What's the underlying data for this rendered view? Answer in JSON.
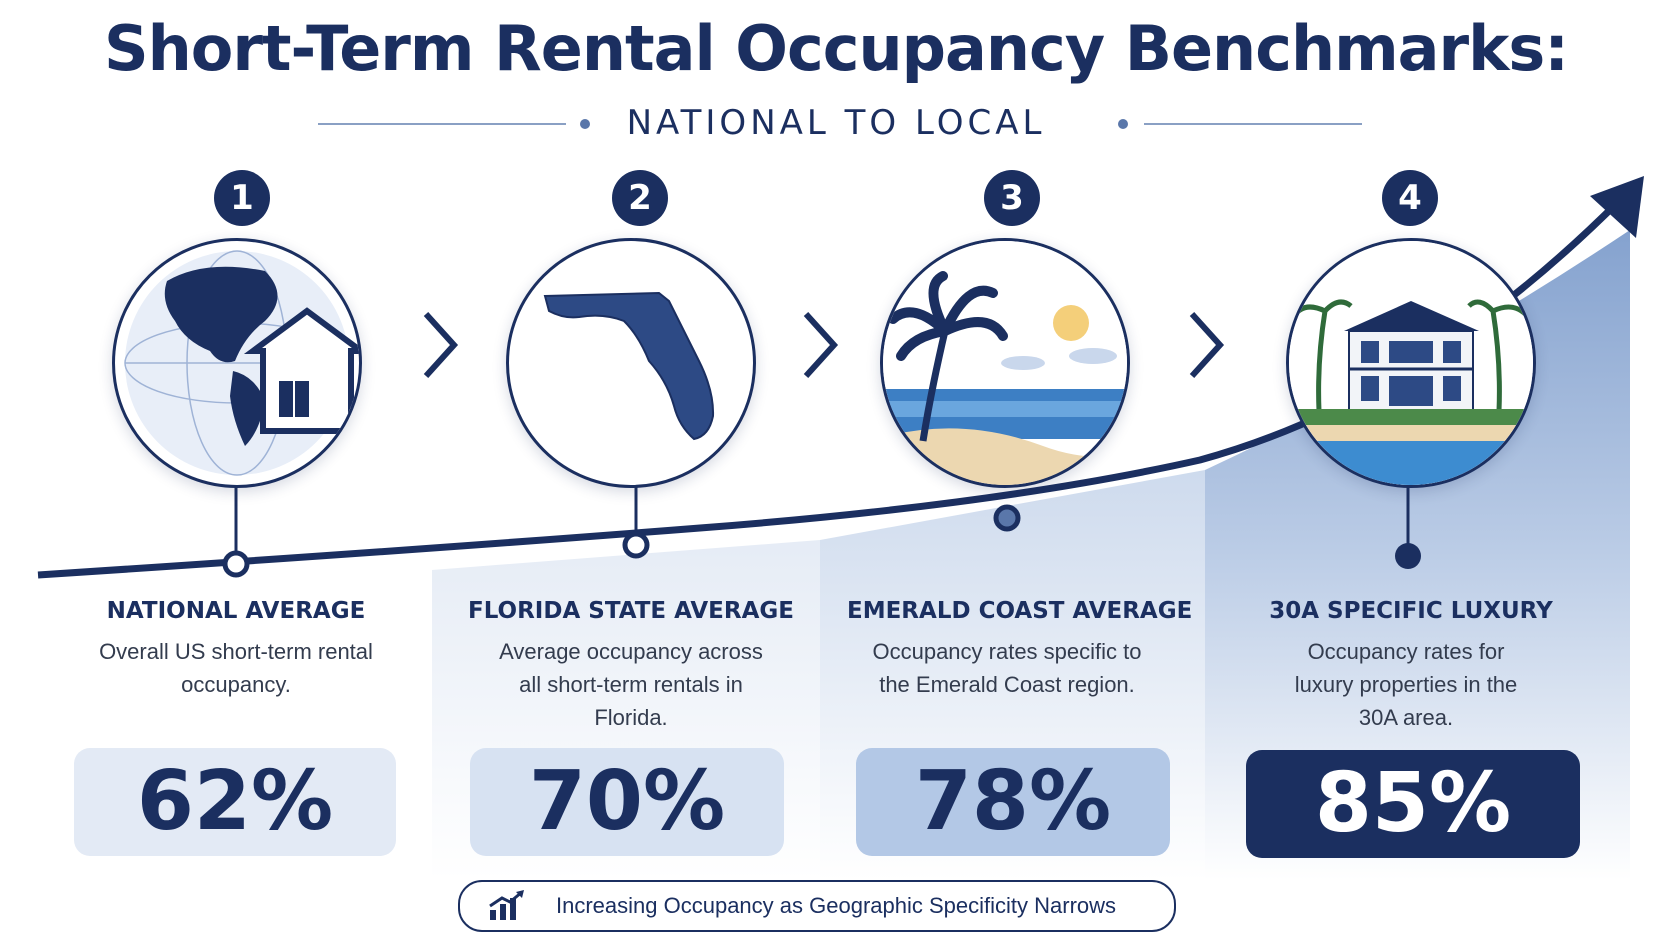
{
  "title": "Short-Term Rental Occupancy Benchmarks:",
  "subtitle": "NATIONAL TO LOCAL",
  "steps": [
    {
      "number": "1",
      "label": "NATIONAL AVERAGE",
      "description": "Overall US short-term rental occupancy.",
      "value": "62%",
      "occupancy": 62,
      "icon": "globe-house-icon"
    },
    {
      "number": "2",
      "label": "FLORIDA STATE AVERAGE",
      "description": "Average occupancy across all short-term rentals in Florida.",
      "value": "70%",
      "occupancy": 70,
      "icon": "florida-map-icon"
    },
    {
      "number": "3",
      "label": "EMERALD COAST AVERAGE",
      "description": "Occupancy rates specific to the Emerald Coast region.",
      "value": "78%",
      "occupancy": 78,
      "icon": "beach-palm-icon"
    },
    {
      "number": "4",
      "label": "30A SPECIFIC LUXURY",
      "description": "Occupancy rates for luxury properties in the 30A area.",
      "value": "85%",
      "occupancy": 85,
      "icon": "luxury-villa-icon"
    }
  ],
  "footer": {
    "text": "Increasing Occupancy as Geographic Specificity Narrows",
    "icon": "growth-chart-icon"
  },
  "colors": {
    "navy": "#1b2f60",
    "light_blue": "#e3eaf5",
    "mid_blue": "#c9d7ec",
    "accent_blue": "#a9bfe0"
  }
}
